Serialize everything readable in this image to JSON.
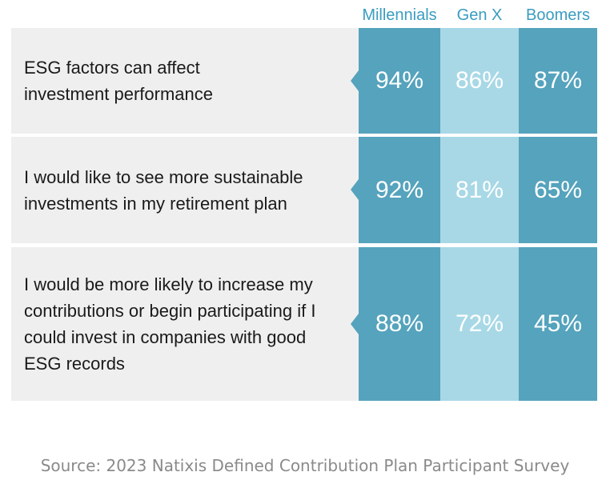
{
  "chart_data": {
    "type": "table",
    "columns": [
      "Millennials",
      "Gen X",
      "Boomers"
    ],
    "rows": [
      {
        "label": "ESG factors can affect investment performance",
        "values": [
          "94%",
          "86%",
          "87%"
        ]
      },
      {
        "label": "I would like to see more sustainable investments in my retirement plan",
        "values": [
          "92%",
          "81%",
          "65%"
        ]
      },
      {
        "label": "I would be more likely to increase my contributions or begin participating if I could invest in companies with good ESG records",
        "values": [
          "88%",
          "72%",
          "45%"
        ]
      }
    ],
    "colors": {
      "millennials": "#55a3bd",
      "gen_x": "#a8d8e6",
      "boomers": "#55a3bd",
      "row_bg": "#efefef",
      "header_text": "#3a9cc0"
    }
  },
  "source": "Source: 2023 Natixis Defined Contribution Plan Participant Survey"
}
